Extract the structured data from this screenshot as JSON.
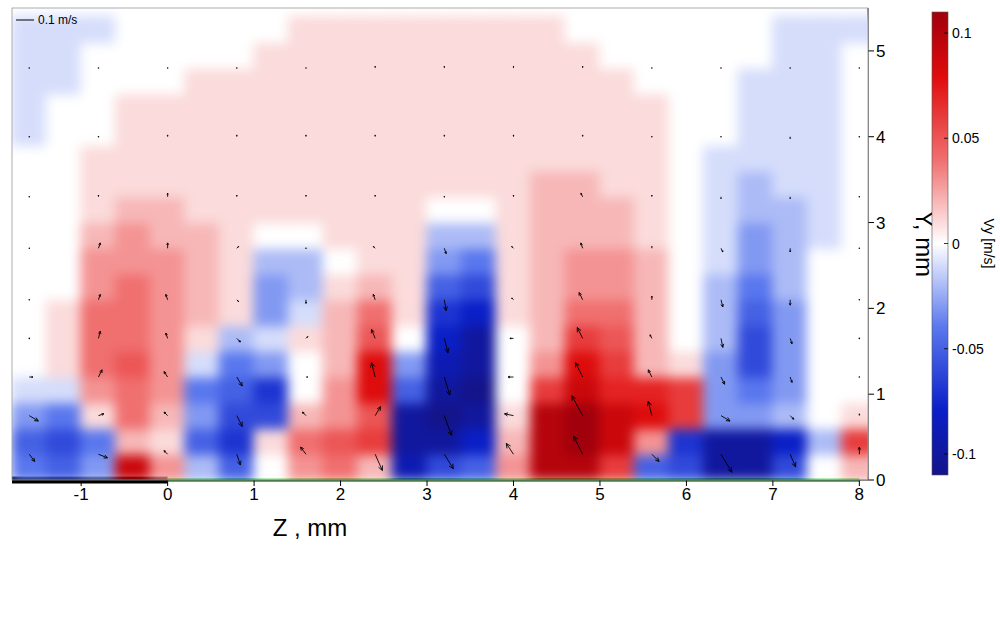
{
  "chart_data": {
    "type": "heatmap",
    "xlabel": "Z , mm",
    "ylabel": "Y, mm",
    "xlim": [
      -1.8,
      8.1
    ],
    "xticks": [
      -1,
      0,
      1,
      2,
      3,
      4,
      5,
      6,
      7,
      8
    ],
    "ylim": [
      0,
      5.5
    ],
    "yticks": [
      0,
      1,
      2,
      3,
      4,
      5
    ],
    "heatmap": {
      "label": "Vy [m/s]",
      "color_range": [
        -0.11,
        0.11
      ],
      "color_ticks": [
        0.1,
        0.05,
        0,
        -0.05,
        -0.1
      ],
      "z": [
        -1.6,
        -1.2,
        -0.8,
        -0.4,
        0,
        0.4,
        0.8,
        1.2,
        1.6,
        2.0,
        2.4,
        2.8,
        3.2,
        3.6,
        4.0,
        4.4,
        4.8,
        5.2,
        5.6,
        6.0,
        6.4,
        6.8,
        7.2,
        7.6,
        8.0
      ],
      "y": [
        0.15,
        0.45,
        0.75,
        1.05,
        1.35,
        1.65,
        1.95,
        2.25,
        2.55,
        2.85,
        3.15,
        3.45,
        3.75,
        4.05,
        4.35,
        4.65,
        4.95,
        5.25
      ],
      "values": [
        [
          -0.04,
          -0.05,
          -0.03,
          0.09,
          0.03,
          -0.02,
          -0.05,
          0,
          0.03,
          0.04,
          0.02,
          -0.09,
          -0.06,
          -0.05,
          0.03,
          0.1,
          0.1,
          0.06,
          -0.05,
          -0.06,
          -0.1,
          -0.1,
          -0.06,
          0,
          0.02
        ],
        [
          -0.05,
          -0.06,
          -0.04,
          0.02,
          0.01,
          -0.05,
          -0.07,
          0.01,
          0.04,
          0.05,
          0.06,
          -0.1,
          -0.1,
          -0.08,
          0.02,
          0.1,
          0.11,
          0.09,
          0.03,
          -0.07,
          -0.1,
          -0.1,
          -0.08,
          -0.02,
          0.06
        ],
        [
          -0.03,
          -0.04,
          0.01,
          0.04,
          0.02,
          -0.03,
          -0.06,
          -0.06,
          0.02,
          0.03,
          0.05,
          -0.1,
          -0.11,
          -0.1,
          0.01,
          0.1,
          0.11,
          0.09,
          0.08,
          0.06,
          -0.03,
          -0.03,
          -0.02,
          0,
          0.01
        ],
        [
          -0.01,
          -0.01,
          0.03,
          0.04,
          0.03,
          -0.04,
          -0.05,
          -0.07,
          0,
          0.03,
          0.08,
          -0.05,
          -0.1,
          -0.11,
          0,
          0.06,
          0.09,
          0.07,
          0.07,
          0.06,
          -0.03,
          -0.04,
          -0.03,
          0,
          0
        ],
        [
          0,
          0.01,
          0.04,
          0.05,
          0.03,
          -0.01,
          -0.04,
          -0.03,
          0,
          0.02,
          0.08,
          -0.03,
          -0.09,
          -0.1,
          0,
          0.03,
          0.08,
          0.06,
          0.02,
          0.01,
          -0.03,
          -0.06,
          -0.03,
          0,
          0
        ],
        [
          0,
          0.01,
          0.04,
          0.04,
          0.03,
          0.01,
          -0.02,
          -0.01,
          0.01,
          0.02,
          0.05,
          0,
          -0.08,
          -0.1,
          0,
          0.02,
          0.06,
          0.05,
          0.02,
          0,
          -0.02,
          -0.06,
          -0.03,
          0,
          0
        ],
        [
          0,
          0.01,
          0.04,
          0.04,
          0.03,
          0.02,
          0.01,
          -0.03,
          -0.01,
          0.02,
          0.04,
          0.01,
          -0.07,
          -0.08,
          0.01,
          0.02,
          0.04,
          0.04,
          0.02,
          0,
          -0.02,
          -0.05,
          -0.03,
          0,
          0
        ],
        [
          0,
          0,
          0.03,
          0.04,
          0.03,
          0.02,
          0.01,
          -0.03,
          -0.02,
          0.01,
          0.02,
          0.01,
          -0.05,
          -0.06,
          0.01,
          0.02,
          0.03,
          0.03,
          0.02,
          0,
          -0.02,
          -0.04,
          -0.02,
          0,
          0
        ],
        [
          0,
          0,
          0.03,
          0.03,
          0.03,
          0.02,
          0.01,
          -0.02,
          -0.02,
          0,
          0.01,
          0.01,
          -0.03,
          -0.04,
          0.01,
          0.02,
          0.03,
          0.03,
          0.02,
          0,
          -0.01,
          -0.03,
          -0.02,
          0,
          0
        ],
        [
          0,
          0,
          0.02,
          0.03,
          0.02,
          0.02,
          0.01,
          0,
          0,
          0.01,
          0.01,
          0.01,
          -0.02,
          -0.02,
          0.01,
          0.02,
          0.02,
          0.02,
          0.01,
          0,
          -0.01,
          -0.03,
          -0.02,
          -0.01,
          0
        ],
        [
          0,
          0,
          0.01,
          0.02,
          0.02,
          0.01,
          0.01,
          0.01,
          0.01,
          0.01,
          0.01,
          0.01,
          0,
          0,
          0.01,
          0.02,
          0.02,
          0.02,
          0.01,
          0,
          -0.01,
          -0.02,
          -0.02,
          -0.01,
          0
        ],
        [
          0,
          0,
          0.01,
          0.01,
          0.01,
          0.01,
          0.01,
          0.01,
          0.01,
          0.01,
          0.01,
          0.01,
          0.01,
          0.01,
          0.01,
          0.02,
          0.02,
          0.01,
          0.01,
          0,
          -0.01,
          -0.02,
          -0.01,
          -0.01,
          0
        ],
        [
          0,
          0,
          0.01,
          0.01,
          0.01,
          0.01,
          0.01,
          0.01,
          0.01,
          0.01,
          0.01,
          0.01,
          0.01,
          0.01,
          0.01,
          0.01,
          0.01,
          0.01,
          0.01,
          0,
          -0.01,
          -0.01,
          -0.01,
          -0.01,
          0
        ],
        [
          -0.01,
          0,
          0,
          0.01,
          0.01,
          0.01,
          0.01,
          0.01,
          0.01,
          0.01,
          0.01,
          0.01,
          0.01,
          0.01,
          0.01,
          0.01,
          0.01,
          0.01,
          0.01,
          0,
          0,
          -0.01,
          -0.01,
          -0.01,
          0
        ],
        [
          -0.01,
          0,
          0,
          0.01,
          0.01,
          0.01,
          0.01,
          0.01,
          0.01,
          0.01,
          0.01,
          0.01,
          0.01,
          0.01,
          0.01,
          0.01,
          0.01,
          0.01,
          0.01,
          0,
          0,
          -0.01,
          -0.01,
          -0.01,
          0
        ],
        [
          -0.01,
          -0.01,
          0,
          0,
          0,
          0.01,
          0.01,
          0.01,
          0.01,
          0.01,
          0.01,
          0.01,
          0.01,
          0.01,
          0.01,
          0.01,
          0.01,
          0.01,
          0,
          0,
          0,
          -0.01,
          -0.01,
          -0.01,
          0
        ],
        [
          -0.01,
          -0.01,
          0,
          0,
          0,
          0,
          0,
          0.01,
          0.01,
          0.01,
          0.01,
          0.01,
          0.01,
          0.01,
          0.01,
          0.01,
          0.01,
          0,
          0,
          0,
          0,
          0,
          -0.01,
          -0.01,
          0
        ],
        [
          -0.01,
          -0.01,
          -0.01,
          0,
          0,
          0,
          0,
          0,
          0.01,
          0.01,
          0.01,
          0.01,
          0.01,
          0.01,
          0.01,
          0.01,
          0,
          0,
          0,
          0,
          0,
          0,
          -0.01,
          -0.01,
          -0.01
        ]
      ]
    },
    "vectors": {
      "scale": {
        "value": 0.1,
        "label": "0.1 m/s"
      },
      "z": [
        -1.6,
        -0.8,
        0,
        0.8,
        1.6,
        2.4,
        3.2,
        4.0,
        4.8,
        5.6,
        6.4,
        7.2,
        8.0
      ],
      "y": [
        0.3,
        0.75,
        1.2,
        1.65,
        2.1,
        2.7,
        3.3,
        4.0,
        4.8
      ],
      "vz": [
        [
          0.03,
          0.05,
          -0.02,
          0.02,
          -0.03,
          0.04,
          0.05,
          -0.04,
          -0.05,
          0.04,
          0.06,
          0.03,
          0
        ],
        [
          0.05,
          0.03,
          -0.02,
          0.03,
          -0.02,
          0.03,
          0.04,
          -0.05,
          -0.06,
          -0.02,
          0.05,
          0.02,
          0
        ],
        [
          0.02,
          0.02,
          -0.02,
          0.03,
          0.01,
          -0.02,
          0.03,
          -0.03,
          -0.04,
          -0.02,
          0.02,
          0.01,
          0
        ],
        [
          0,
          0.01,
          -0.01,
          0.02,
          0.01,
          -0.02,
          0.02,
          -0.02,
          -0.03,
          -0.01,
          0.01,
          0.01,
          0
        ],
        [
          0,
          0.01,
          -0.01,
          0.01,
          0,
          -0.01,
          0.01,
          -0.01,
          -0.02,
          0,
          0.01,
          0,
          0
        ],
        [
          0,
          0.01,
          0,
          0.01,
          0,
          -0.01,
          0.01,
          -0.01,
          -0.01,
          0,
          0.01,
          0,
          0
        ],
        [
          0,
          0,
          0,
          0,
          0,
          0,
          0,
          0,
          -0.01,
          0,
          0,
          0,
          0
        ],
        [
          0,
          0,
          0,
          0,
          0,
          0,
          0,
          0,
          0,
          0,
          0,
          0,
          0
        ],
        [
          0,
          0,
          0,
          0,
          0,
          0,
          0,
          0,
          0,
          0,
          0,
          0,
          0
        ]
      ],
      "vy": [
        [
          -0.04,
          -0.02,
          0.02,
          -0.06,
          0.04,
          -0.09,
          -0.08,
          0.06,
          0.1,
          -0.04,
          -0.1,
          -0.07,
          0.04
        ],
        [
          -0.03,
          0.01,
          0.02,
          -0.06,
          0.02,
          0.05,
          -0.11,
          0.01,
          0.11,
          0.08,
          -0.03,
          -0.02,
          0.01
        ],
        [
          0,
          0.04,
          0.03,
          -0.05,
          0,
          0.08,
          -0.1,
          0,
          0.08,
          0.04,
          -0.04,
          -0.03,
          0
        ],
        [
          0,
          0.04,
          0.03,
          -0.02,
          0.01,
          0.05,
          -0.08,
          0,
          0.06,
          0.02,
          -0.05,
          -0.03,
          0
        ],
        [
          0,
          0.03,
          0.03,
          -0.01,
          -0.02,
          0.03,
          -0.06,
          0.01,
          0.04,
          0.02,
          -0.04,
          -0.03,
          0
        ],
        [
          0,
          0.03,
          0.03,
          0.01,
          0,
          0.01,
          -0.03,
          0.01,
          0.03,
          0.01,
          -0.02,
          -0.02,
          0
        ],
        [
          0,
          0.01,
          0.02,
          0.01,
          0.01,
          0.01,
          0,
          0.01,
          0.02,
          0.01,
          -0.01,
          -0.01,
          0
        ],
        [
          0,
          0,
          0.01,
          0.01,
          0.01,
          0.01,
          0.01,
          0.01,
          0.01,
          0,
          0,
          -0.01,
          0
        ],
        [
          0,
          0,
          0,
          0,
          0,
          0.01,
          0.01,
          0.01,
          0.01,
          0,
          0,
          0,
          0
        ]
      ]
    },
    "surface": [
      {
        "z": [
          -1.8,
          0
        ],
        "color": "#000000"
      },
      {
        "z": [
          0,
          8
        ],
        "color": "#33cc33"
      }
    ]
  }
}
